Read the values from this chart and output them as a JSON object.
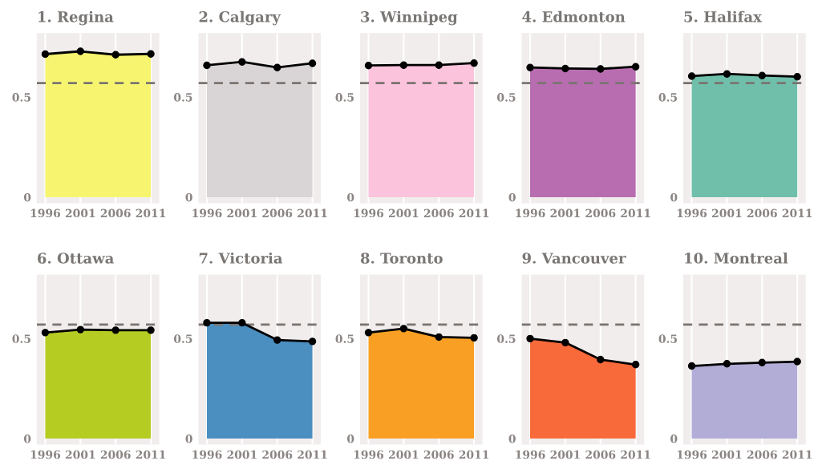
{
  "chart_data": [
    {
      "type": "area",
      "title": "1. Regina",
      "x": [
        1996,
        2001,
        2006,
        2011
      ],
      "xlim": [
        1994.8,
        2012.2
      ],
      "xticks": [
        1996,
        2001,
        2006,
        2011
      ],
      "ylim": [
        -0.03,
        0.82
      ],
      "yticks": [
        0,
        0.5
      ],
      "grid": "x",
      "marker": "circle",
      "series": [
        {
          "color": "#f7f570",
          "values": [
            0.715,
            0.729,
            0.712,
            0.716
          ]
        }
      ],
      "ref_lines": [
        {
          "axis": "y",
          "value": 0.57,
          "line_style": "dashed",
          "color": "#7a7470"
        }
      ]
    },
    {
      "type": "area",
      "title": "2. Calgary",
      "x": [
        1996,
        2001,
        2006,
        2011
      ],
      "xlim": [
        1994.8,
        2012.2
      ],
      "xticks": [
        1996,
        2001,
        2006,
        2011
      ],
      "ylim": [
        -0.03,
        0.82
      ],
      "yticks": [
        0,
        0.5
      ],
      "grid": "x",
      "marker": "circle",
      "series": [
        {
          "color": "#d9d5d6",
          "values": [
            0.659,
            0.676,
            0.648,
            0.669
          ]
        }
      ],
      "ref_lines": [
        {
          "axis": "y",
          "value": 0.57,
          "line_style": "dashed",
          "color": "#7a7470"
        }
      ]
    },
    {
      "type": "area",
      "title": "3. Winnipeg",
      "x": [
        1996,
        2001,
        2006,
        2011
      ],
      "xlim": [
        1994.8,
        2012.2
      ],
      "xticks": [
        1996,
        2001,
        2006,
        2011
      ],
      "ylim": [
        -0.03,
        0.82
      ],
      "yticks": [
        0,
        0.5
      ],
      "grid": "x",
      "marker": "circle",
      "series": [
        {
          "color": "#fcc3dc",
          "values": [
            0.658,
            0.66,
            0.66,
            0.67
          ]
        }
      ],
      "ref_lines": [
        {
          "axis": "y",
          "value": 0.57,
          "line_style": "dashed",
          "color": "#7a7470"
        }
      ]
    },
    {
      "type": "area",
      "title": "4. Edmonton",
      "x": [
        1996,
        2001,
        2006,
        2011
      ],
      "xlim": [
        1994.8,
        2012.2
      ],
      "xticks": [
        1996,
        2001,
        2006,
        2011
      ],
      "ylim": [
        -0.03,
        0.82
      ],
      "yticks": [
        0,
        0.5
      ],
      "grid": "x",
      "marker": "circle",
      "series": [
        {
          "color": "#b86db0",
          "values": [
            0.648,
            0.643,
            0.641,
            0.652
          ]
        }
      ],
      "ref_lines": [
        {
          "axis": "y",
          "value": 0.57,
          "line_style": "dashed",
          "color": "#7a7470"
        }
      ]
    },
    {
      "type": "area",
      "title": "5. Halifax",
      "x": [
        1996,
        2001,
        2006,
        2011
      ],
      "xlim": [
        1994.8,
        2012.2
      ],
      "xticks": [
        1996,
        2001,
        2006,
        2011
      ],
      "ylim": [
        -0.03,
        0.82
      ],
      "yticks": [
        0,
        0.5
      ],
      "grid": "x",
      "marker": "circle",
      "series": [
        {
          "color": "#6fbfaa",
          "values": [
            0.605,
            0.616,
            0.608,
            0.602
          ]
        }
      ],
      "ref_lines": [
        {
          "axis": "y",
          "value": 0.57,
          "line_style": "dashed",
          "color": "#7a7470"
        }
      ]
    },
    {
      "type": "area",
      "title": "6. Ottawa",
      "x": [
        1996,
        2001,
        2006,
        2011
      ],
      "xlim": [
        1994.8,
        2012.2
      ],
      "xticks": [
        1996,
        2001,
        2006,
        2011
      ],
      "ylim": [
        -0.03,
        0.82
      ],
      "yticks": [
        0,
        0.5
      ],
      "grid": "x",
      "marker": "circle",
      "series": [
        {
          "color": "#b5cc22",
          "values": [
            0.53,
            0.545,
            0.542,
            0.542
          ]
        }
      ],
      "ref_lines": [
        {
          "axis": "y",
          "value": 0.57,
          "line_style": "dashed",
          "color": "#7a7470"
        }
      ]
    },
    {
      "type": "area",
      "title": "7. Victoria",
      "x": [
        1996,
        2001,
        2006,
        2011
      ],
      "xlim": [
        1994.8,
        2012.2
      ],
      "xticks": [
        1996,
        2001,
        2006,
        2011
      ],
      "ylim": [
        -0.03,
        0.82
      ],
      "yticks": [
        0,
        0.5
      ],
      "grid": "x",
      "marker": "circle",
      "series": [
        {
          "color": "#4a8fc0",
          "values": [
            0.579,
            0.579,
            0.493,
            0.486
          ]
        }
      ],
      "ref_lines": [
        {
          "axis": "y",
          "value": 0.57,
          "line_style": "dashed",
          "color": "#7a7470"
        }
      ]
    },
    {
      "type": "area",
      "title": "8. Toronto",
      "x": [
        1996,
        2001,
        2006,
        2011
      ],
      "xlim": [
        1994.8,
        2012.2
      ],
      "xticks": [
        1996,
        2001,
        2006,
        2011
      ],
      "ylim": [
        -0.03,
        0.82
      ],
      "yticks": [
        0,
        0.5
      ],
      "grid": "x",
      "marker": "circle",
      "series": [
        {
          "color": "#f9a024",
          "values": [
            0.53,
            0.55,
            0.508,
            0.504
          ]
        }
      ],
      "ref_lines": [
        {
          "axis": "y",
          "value": 0.57,
          "line_style": "dashed",
          "color": "#7a7470"
        }
      ]
    },
    {
      "type": "area",
      "title": "9. Vancouver",
      "x": [
        1996,
        2001,
        2006,
        2011
      ],
      "xlim": [
        1994.8,
        2012.2
      ],
      "xticks": [
        1996,
        2001,
        2006,
        2011
      ],
      "ylim": [
        -0.03,
        0.82
      ],
      "yticks": [
        0,
        0.5
      ],
      "grid": "x",
      "marker": "circle",
      "series": [
        {
          "color": "#f96a3a",
          "values": [
            0.5,
            0.48,
            0.395,
            0.37
          ]
        }
      ],
      "ref_lines": [
        {
          "axis": "y",
          "value": 0.57,
          "line_style": "dashed",
          "color": "#7a7470"
        }
      ]
    },
    {
      "type": "area",
      "title": "10. Montreal",
      "x": [
        1996,
        2001,
        2006,
        2011
      ],
      "xlim": [
        1994.8,
        2012.2
      ],
      "xticks": [
        1996,
        2001,
        2006,
        2011
      ],
      "ylim": [
        -0.03,
        0.82
      ],
      "yticks": [
        0,
        0.5
      ],
      "grid": "x",
      "marker": "circle",
      "series": [
        {
          "color": "#b2add6",
          "values": [
            0.363,
            0.374,
            0.38,
            0.385
          ]
        }
      ],
      "ref_lines": [
        {
          "axis": "y",
          "value": 0.57,
          "line_style": "dashed",
          "color": "#7a7470"
        }
      ]
    }
  ]
}
